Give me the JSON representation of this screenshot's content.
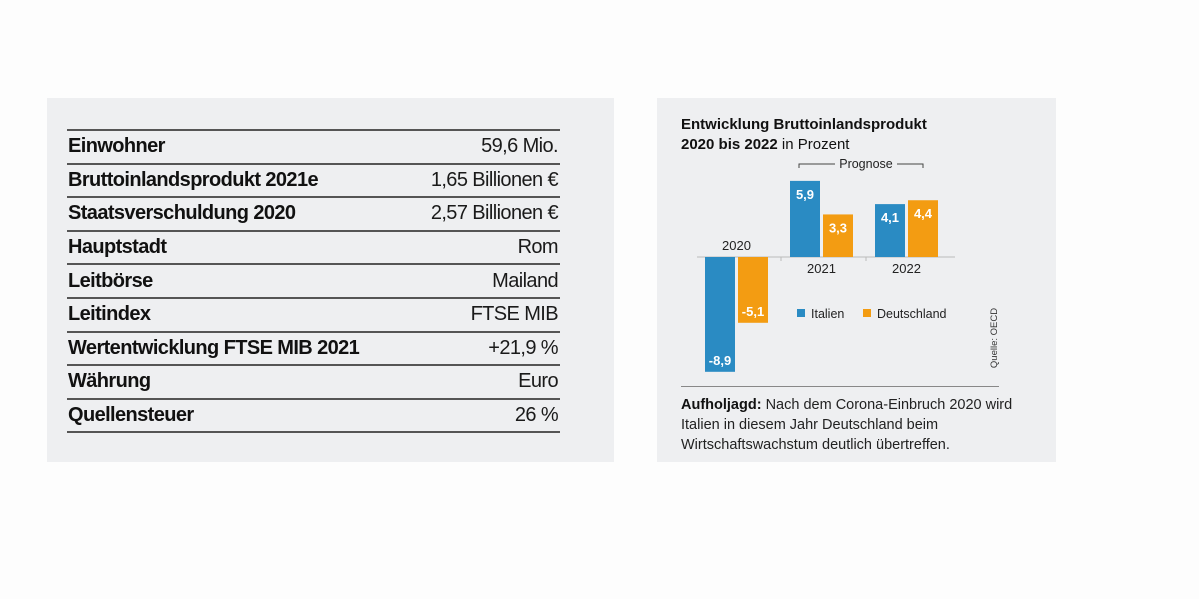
{
  "facts": [
    {
      "label": "Einwohner",
      "value": "59,6 Mio."
    },
    {
      "label": "Bruttoinlandsprodukt 2021e",
      "value": "1,65 Billionen €"
    },
    {
      "label": "Staatsverschuldung 2020",
      "value": "2,57 Billionen €"
    },
    {
      "label": "Hauptstadt",
      "value": "Rom"
    },
    {
      "label": "Leitbörse",
      "value": "Mailand"
    },
    {
      "label": "Leitindex",
      "value": "FTSE MIB"
    },
    {
      "label": "Wertentwicklung FTSE MIB 2021",
      "value": "+21,9 %"
    },
    {
      "label": "Währung",
      "value": "Euro"
    },
    {
      "label": "Quellensteuer",
      "value": "26 %"
    }
  ],
  "chart_title": {
    "line1": "Entwicklung Bruttoinlandsprodukt",
    "line2_bold": "2020 bis 2022",
    "line2_normal": " in Prozent"
  },
  "caption": {
    "bold": "Aufholjagd:",
    "text": " Nach dem Corona-Einbruch 2020 wird Italien in diesem Jahr Deutschland beim Wirtschaftswachstum deutlich übertreffen."
  },
  "chart_data": {
    "type": "bar",
    "title": "Entwicklung Bruttoinlandsprodukt 2020 bis 2022 in Prozent",
    "xlabel": "",
    "ylabel": "Prozent",
    "categories": [
      "2020",
      "2021",
      "2022"
    ],
    "series": [
      {
        "name": "Italien",
        "color": "#2a8bc3",
        "values": [
          -8.9,
          5.9,
          4.1
        ],
        "labels": [
          "-8,9",
          "5,9",
          "4,1"
        ]
      },
      {
        "name": "Deutschland",
        "color": "#f39c12",
        "values": [
          -5.1,
          3.3,
          4.4
        ],
        "labels": [
          "-5,1",
          "3,3",
          "4,4"
        ]
      }
    ],
    "ylim": [
      -8.9,
      5.9
    ],
    "grid": false,
    "legend": "center-right",
    "annotation": "Prognose",
    "annotation_categories": [
      "2021",
      "2022"
    ],
    "source": "Quelle: OECD"
  }
}
